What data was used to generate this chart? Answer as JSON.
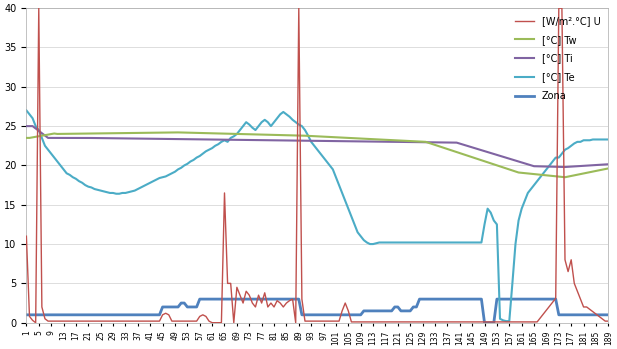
{
  "xlim": [
    1,
    189
  ],
  "ylim": [
    0,
    40
  ],
  "yticks": [
    0,
    5,
    10,
    15,
    20,
    25,
    30,
    35,
    40
  ],
  "legend_labels": [
    "[W/m².°C] U",
    "[°C] Tw",
    "[°C] Ti",
    "[°C] Te",
    "Zona"
  ],
  "line_colors": [
    "#c0504d",
    "#9bbb59",
    "#8064a2",
    "#4bacc6",
    "#4f81bd"
  ],
  "line_widths": [
    1.0,
    1.5,
    1.5,
    1.5,
    2.0
  ],
  "background_color": "#ffffff",
  "grid_color": "#d0d0d0"
}
